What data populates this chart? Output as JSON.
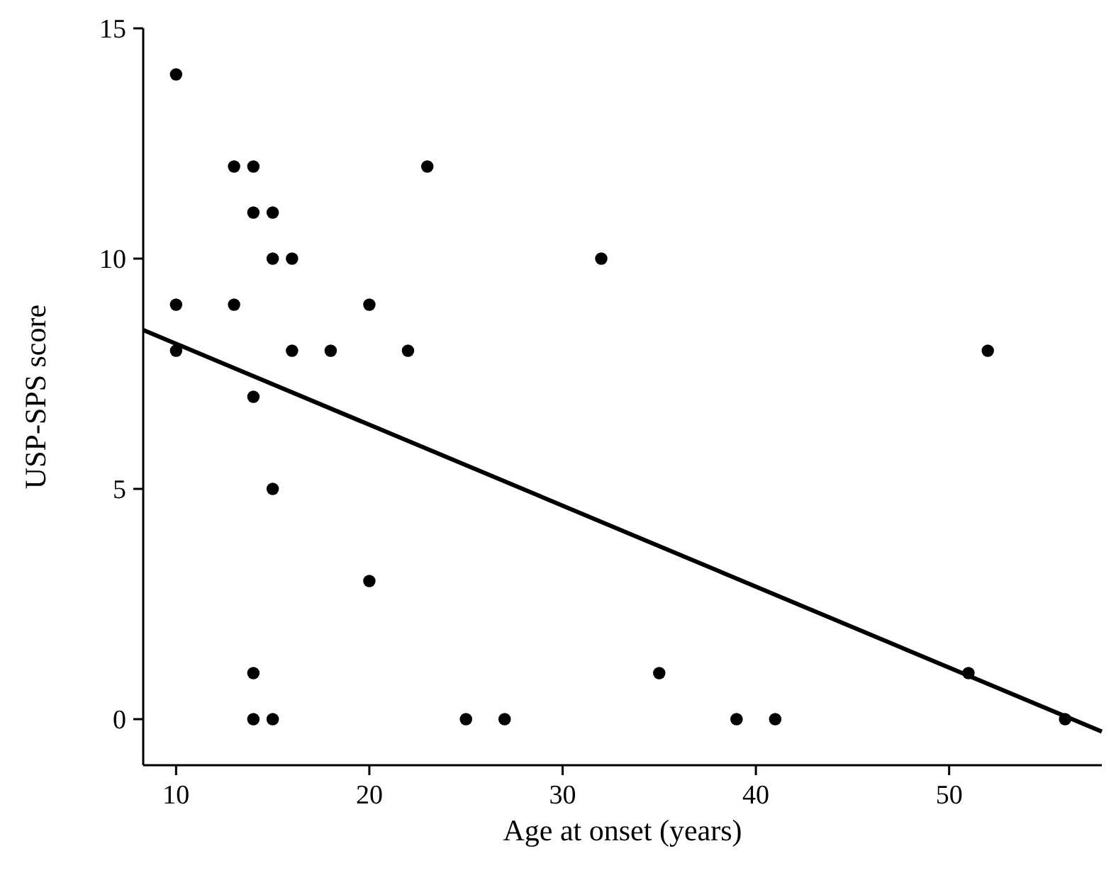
{
  "chart_data": {
    "type": "scatter",
    "xlabel": "Age at onset (years)",
    "ylabel": "USP-SPS score",
    "xlim": [
      8.3,
      57.9
    ],
    "ylim": [
      -1,
      15
    ],
    "xticks": [
      10,
      20,
      30,
      40,
      50
    ],
    "yticks": [
      0,
      5,
      10,
      15
    ],
    "grid": false,
    "marker": "circle",
    "series": [
      {
        "color": "#000000",
        "x": [
          10,
          10,
          10,
          13,
          13,
          14,
          14,
          14,
          14,
          14,
          15,
          15,
          15,
          15,
          16,
          16,
          18,
          20,
          20,
          22,
          23,
          25,
          27,
          32,
          35,
          39,
          41,
          51,
          52,
          56
        ],
        "values": [
          14,
          9,
          8,
          12,
          9,
          12,
          11,
          7,
          1,
          0,
          11,
          10,
          5,
          0,
          10,
          8,
          8,
          9,
          3,
          8,
          12,
          0,
          0,
          10,
          1,
          0,
          0,
          1,
          8,
          0
        ]
      },
      {
        "type": "line",
        "color": "#000000",
        "x": [
          8.3,
          57.9
        ],
        "values": [
          8.45,
          -0.27
        ],
        "marker": "none"
      }
    ]
  }
}
